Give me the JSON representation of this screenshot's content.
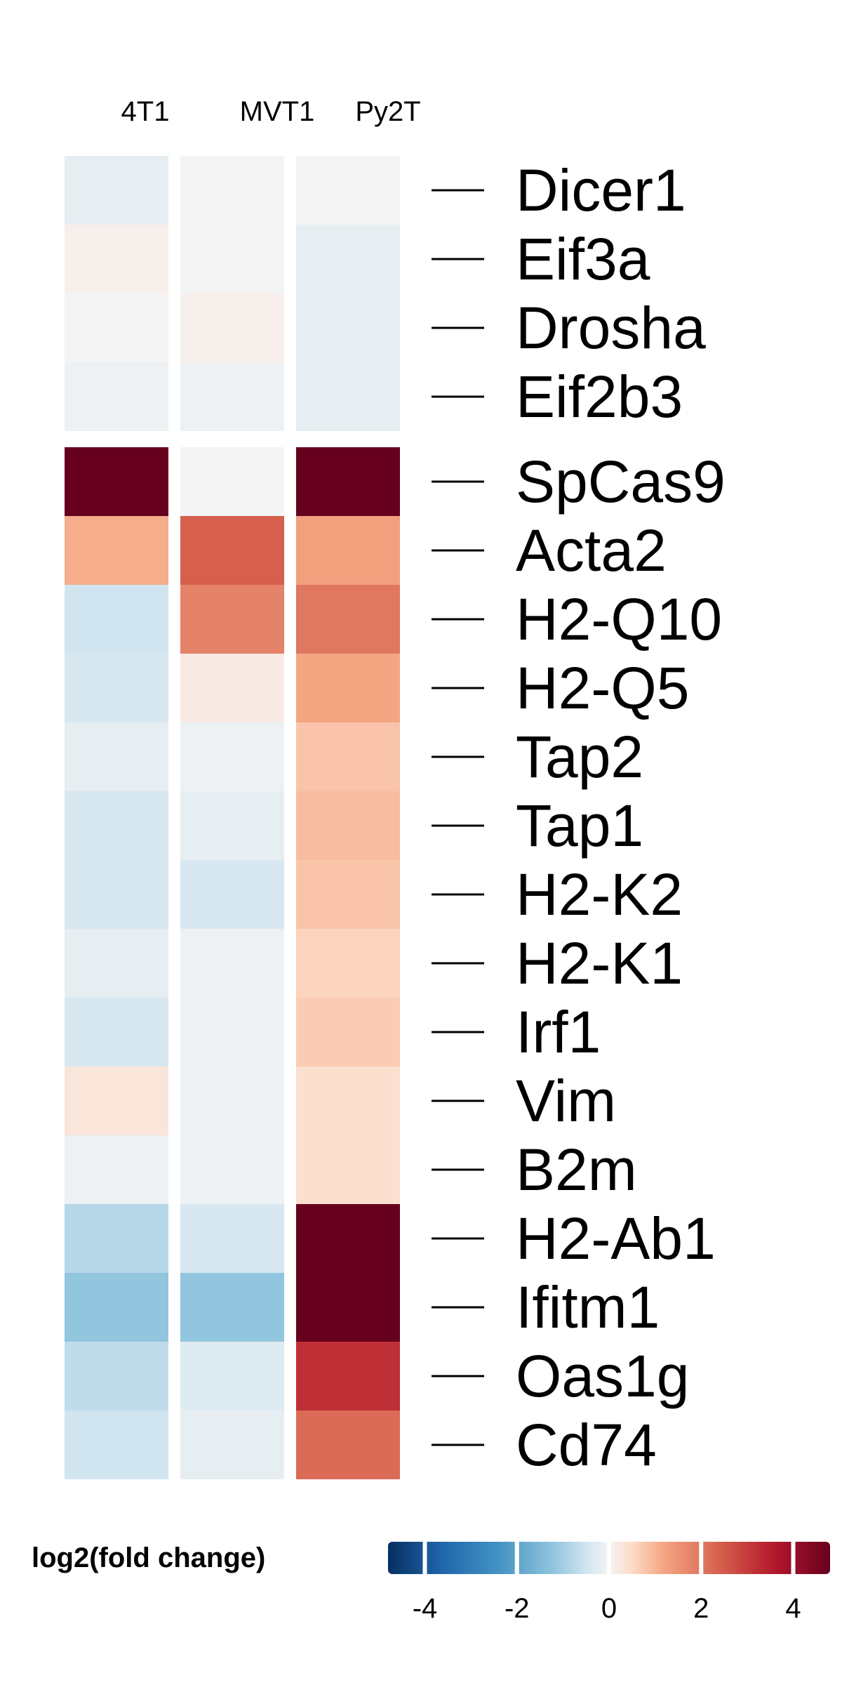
{
  "chart_data": {
    "type": "heatmap",
    "title": "",
    "columns": [
      "4T1",
      "MVT1",
      "Py2T"
    ],
    "row_groups": [
      {
        "rows": [
          {
            "gene": "Dicer1",
            "values": [
              -0.2,
              0.0,
              0.0
            ]
          },
          {
            "gene": "Eif3a",
            "values": [
              0.1,
              0.0,
              -0.2
            ]
          },
          {
            "gene": "Drosha",
            "values": [
              0.0,
              0.1,
              -0.2
            ]
          },
          {
            "gene": "Eif2b3",
            "values": [
              -0.1,
              -0.1,
              -0.2
            ]
          }
        ]
      },
      {
        "rows": [
          {
            "gene": "SpCas9",
            "values": [
              4.8,
              0.0,
              4.8
            ]
          },
          {
            "gene": "Acta2",
            "values": [
              1.1,
              2.4,
              1.3
            ]
          },
          {
            "gene": "H2-Q10",
            "values": [
              -0.5,
              1.8,
              2.0
            ]
          },
          {
            "gene": "H2-Q5",
            "values": [
              -0.4,
              0.2,
              1.2
            ]
          },
          {
            "gene": "Tap2",
            "values": [
              -0.2,
              -0.1,
              0.8
            ]
          },
          {
            "gene": "Tap1",
            "values": [
              -0.4,
              -0.2,
              0.9
            ]
          },
          {
            "gene": "H2-K2",
            "values": [
              -0.4,
              -0.4,
              0.8
            ]
          },
          {
            "gene": "H2-K1",
            "values": [
              -0.2,
              -0.1,
              0.6
            ]
          },
          {
            "gene": "Irf1",
            "values": [
              -0.4,
              -0.1,
              0.7
            ]
          },
          {
            "gene": "Vim",
            "values": [
              0.3,
              -0.1,
              0.4
            ]
          },
          {
            "gene": "B2m",
            "values": [
              -0.1,
              -0.1,
              0.4
            ]
          },
          {
            "gene": "H2-Ab1",
            "values": [
              -0.8,
              -0.4,
              4.8
            ]
          },
          {
            "gene": "Ifitm1",
            "values": [
              -1.2,
              -1.2,
              4.8
            ]
          },
          {
            "gene": "Oas1g",
            "values": [
              -0.7,
              -0.3,
              3.2
            ]
          },
          {
            "gene": "Cd74",
            "values": [
              -0.5,
              -0.2,
              2.2
            ]
          }
        ]
      }
    ],
    "color_scale": {
      "label": "log2(fold change)",
      "min": -4.8,
      "max": 4.8,
      "ticks": [
        -4,
        -2,
        0,
        2,
        4
      ],
      "stops": [
        {
          "value": -4.8,
          "color": "#053061"
        },
        {
          "value": -3.6,
          "color": "#2166ac"
        },
        {
          "value": -2.4,
          "color": "#4393c3"
        },
        {
          "value": -1.2,
          "color": "#92c5de"
        },
        {
          "value": -0.5,
          "color": "#d1e5f0"
        },
        {
          "value": 0.0,
          "color": "#f4f4f4"
        },
        {
          "value": 0.5,
          "color": "#fddbc7"
        },
        {
          "value": 1.2,
          "color": "#f4a582"
        },
        {
          "value": 2.4,
          "color": "#d6604d"
        },
        {
          "value": 3.6,
          "color": "#b2182b"
        },
        {
          "value": 4.8,
          "color": "#67001f"
        }
      ]
    }
  }
}
